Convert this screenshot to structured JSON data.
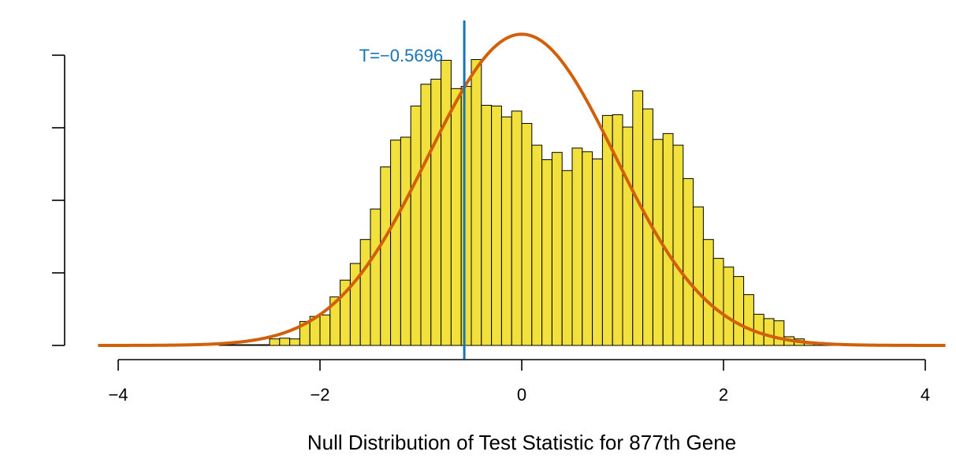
{
  "chart_data": {
    "type": "histogram",
    "xlabel": "Null Distribution of Test Statistic for 877th Gene",
    "ylabel": "",
    "xlim": [
      -4,
      4
    ],
    "ylim": [
      0,
      0.43
    ],
    "x_ticks": [
      -4,
      -2,
      0,
      2,
      4
    ],
    "x_tick_labels": [
      "−4",
      "−2",
      "0",
      "2",
      "4"
    ],
    "y_ticks": [
      0,
      0.1,
      0.2,
      0.3,
      0.4
    ],
    "bin_width": 0.1,
    "bin_start": -3.0,
    "bin_values": [
      0.001,
      0.001,
      0.001,
      0.001,
      0.001,
      0.009,
      0.01,
      0.009,
      0.033,
      0.04,
      0.042,
      0.067,
      0.09,
      0.113,
      0.146,
      0.188,
      0.246,
      0.283,
      0.287,
      0.33,
      0.36,
      0.367,
      0.393,
      0.354,
      0.357,
      0.394,
      0.331,
      0.33,
      0.315,
      0.323,
      0.306,
      0.276,
      0.256,
      0.266,
      0.241,
      0.272,
      0.267,
      0.257,
      0.317,
      0.318,
      0.301,
      0.351,
      0.326,
      0.284,
      0.292,
      0.276,
      0.23,
      0.191,
      0.146,
      0.12,
      0.108,
      0.095,
      0.07,
      0.043,
      0.037,
      0.034,
      0.012,
      0.009,
      0.005,
      0.004,
      0.002,
      0.001
    ],
    "bar_fill": "#F2E03C",
    "bar_stroke": "#000000",
    "density_curve": {
      "type": "normal",
      "mean": 0,
      "sd": 0.93,
      "xlim": [
        -4.2,
        4.2
      ],
      "color": "#D2600A"
    },
    "observed": {
      "x": -0.5696,
      "label": "T=−0.5696",
      "color": "#1874B5"
    }
  }
}
